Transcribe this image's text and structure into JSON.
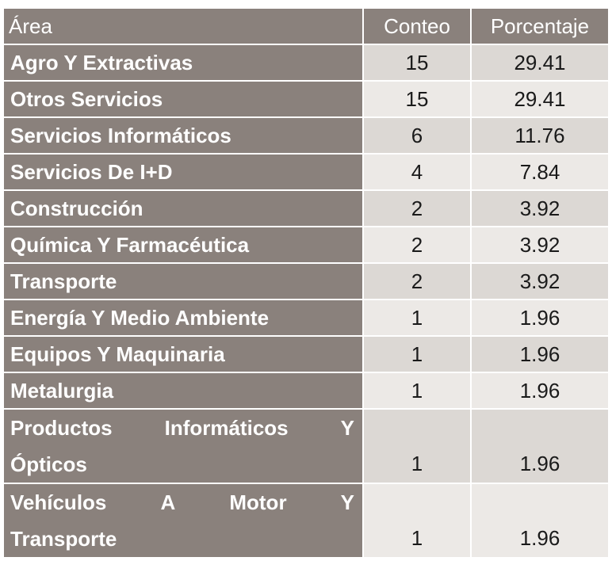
{
  "header": {
    "area": "Área",
    "conteo": "Conteo",
    "porcentaje": "Porcentaje"
  },
  "rows": [
    {
      "area": "Agro Y Extractivas",
      "conteo": "15",
      "porcentaje": "29.41"
    },
    {
      "area": "Otros Servicios",
      "conteo": "15",
      "porcentaje": "29.41"
    },
    {
      "area": "Servicios Informáticos",
      "conteo": "6",
      "porcentaje": "11.76"
    },
    {
      "area": "Servicios De I+D",
      "conteo": "4",
      "porcentaje": "7.84"
    },
    {
      "area": "Construcción",
      "conteo": "2",
      "porcentaje": "3.92"
    },
    {
      "area": "Química Y Farmacéutica",
      "conteo": "2",
      "porcentaje": "3.92"
    },
    {
      "area": "Transporte",
      "conteo": "2",
      "porcentaje": "3.92"
    },
    {
      "area": "Energía Y Medio Ambiente",
      "conteo": "1",
      "porcentaje": "1.96"
    },
    {
      "area": "Equipos Y Maquinaria",
      "conteo": "1",
      "porcentaje": "1.96"
    },
    {
      "area": "Metalurgia",
      "conteo": "1",
      "porcentaje": "1.96"
    },
    {
      "area_line1": [
        "Productos",
        "Informáticos",
        "Y"
      ],
      "area_line2": "Ópticos",
      "conteo": "1",
      "porcentaje": "1.96"
    },
    {
      "area_line1": [
        "Vehículos",
        "A",
        "Motor",
        "Y"
      ],
      "area_line2": "Transporte",
      "conteo": "1",
      "porcentaje": "1.96"
    }
  ],
  "colors": {
    "header_bg": "#8a817c",
    "row_odd_bg": "#dcd8d4",
    "row_even_bg": "#ece9e6"
  }
}
